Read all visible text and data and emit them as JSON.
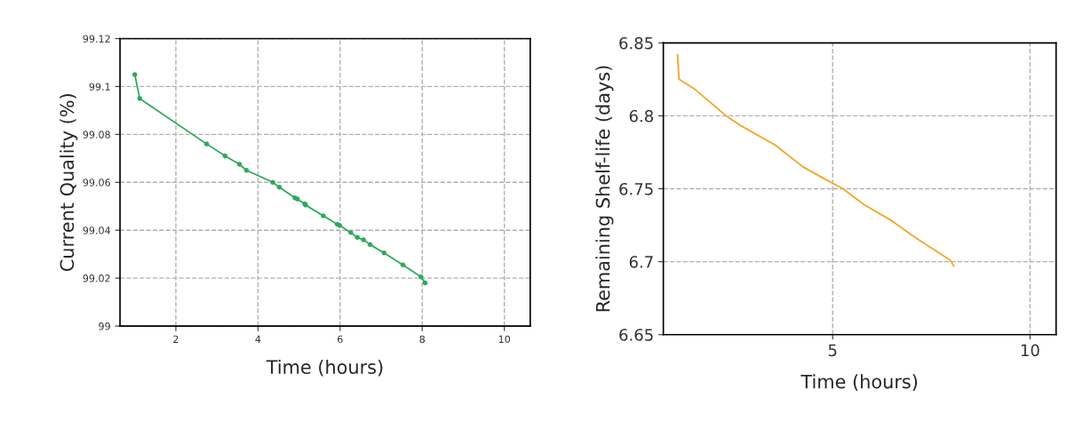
{
  "chart_data": [
    {
      "type": "line",
      "xlabel": "Time (hours)",
      "ylabel": "Current Quality (%)",
      "xlim": [
        0.64,
        10.63
      ],
      "ylim": [
        99,
        99.12
      ],
      "xticks": [
        2,
        4,
        6,
        8,
        10
      ],
      "yticks": [
        99,
        99.02,
        99.04,
        99.06,
        99.08,
        99.1,
        99.12
      ],
      "grid": true,
      "marker": "circle",
      "line_style": "solid",
      "series": [
        {
          "color": "#2eaa5c",
          "x": [
            1.0,
            1.12,
            2.75,
            3.2,
            3.55,
            3.72,
            4.36,
            4.52,
            4.9,
            4.96,
            5.14,
            5.16,
            5.59,
            5.93,
            5.99,
            6.26,
            6.42,
            6.57,
            6.73,
            7.07,
            7.53,
            7.97,
            8.07
          ],
          "values": [
            99.105,
            99.095,
            99.076,
            99.071,
            99.0675,
            99.065,
            99.06,
            99.058,
            99.0535,
            99.053,
            99.051,
            99.0505,
            99.046,
            99.0425,
            99.042,
            99.039,
            99.037,
            99.036,
            99.034,
            99.0305,
            99.0255,
            99.0205,
            99.018
          ]
        }
      ]
    },
    {
      "type": "line",
      "xlabel": "Time (hours)",
      "ylabel": "Remaining Shelf-life (days)",
      "xlim": [
        0.71,
        10.66
      ],
      "ylim": [
        6.65,
        6.85
      ],
      "xticks": [
        5,
        10
      ],
      "yticks": [
        6.65,
        6.7,
        6.75,
        6.8,
        6.85
      ],
      "grid": true,
      "line_style": "solid",
      "series": [
        {
          "color": "#f5a623",
          "x": [
            1.07,
            1.11,
            1.52,
            2.3,
            2.69,
            3.54,
            4.25,
            4.71,
            5.26,
            5.8,
            6.5,
            7.12,
            7.98,
            8.07
          ],
          "values": [
            6.842,
            6.825,
            6.818,
            6.8,
            6.793,
            6.78,
            6.765,
            6.758,
            6.75,
            6.739,
            6.728,
            6.716,
            6.701,
            6.697
          ]
        }
      ]
    }
  ]
}
